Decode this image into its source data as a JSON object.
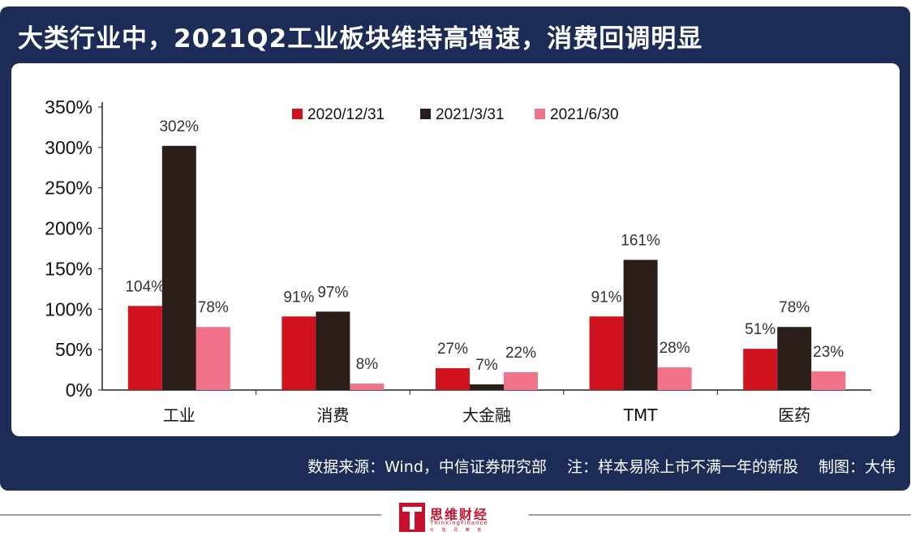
{
  "header": {
    "title": "大类行业中，2021Q2工业板块维持高增速，消费回调明显"
  },
  "footer": {
    "source_note": "数据来源：Wind，中信证券研究部　 注：样本易除上市不满一年的新股　 制图：大伟"
  },
  "logo": {
    "name": "思维财经",
    "english": "ThinkingFinance",
    "sub": "价 值 洞 察 者"
  },
  "colors": {
    "background_card": "#1d2c57",
    "series": [
      "#d0121f",
      "#2b1d1a",
      "#f2728a"
    ]
  },
  "chart_data": {
    "type": "bar",
    "title": "",
    "xlabel": "",
    "ylabel": "",
    "ylim": [
      0,
      350
    ],
    "yticks": [
      0,
      50,
      100,
      150,
      200,
      250,
      300,
      350
    ],
    "ytick_labels": [
      "0%",
      "50%",
      "100%",
      "150%",
      "200%",
      "250%",
      "300%",
      "350%"
    ],
    "grid": false,
    "legend_position": "top-center",
    "categories": [
      "工业",
      "消费",
      "大金融",
      "TMT",
      "医药"
    ],
    "series": [
      {
        "name": "2020/12/31",
        "values": [
          104,
          91,
          27,
          91,
          51
        ],
        "labels": [
          "104%",
          "91%",
          "27%",
          "91%",
          "51%"
        ]
      },
      {
        "name": "2021/3/31",
        "values": [
          302,
          97,
          7,
          161,
          78
        ],
        "labels": [
          "302%",
          "97%",
          "7%",
          "161%",
          "78%"
        ]
      },
      {
        "name": "2021/6/30",
        "values": [
          78,
          8,
          22,
          28,
          23
        ],
        "labels": [
          "78%",
          "8%",
          "22%",
          "28%",
          "23%"
        ]
      }
    ]
  }
}
